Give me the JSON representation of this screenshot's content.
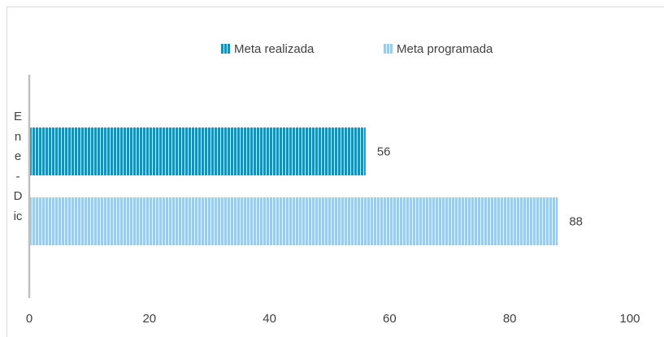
{
  "chart_data": {
    "type": "hbar",
    "categories": [
      "Ene-Dic"
    ],
    "series": [
      {
        "name": "Meta realizada",
        "color": "#1b8ec0",
        "values": [
          56
        ]
      },
      {
        "name": "Meta programada",
        "color": "#9ccbec",
        "values": [
          88
        ]
      }
    ],
    "xlim": [
      0,
      100
    ],
    "xticks": [
      0,
      20,
      40,
      60,
      80,
      100
    ],
    "grid": false,
    "legend": "top"
  }
}
